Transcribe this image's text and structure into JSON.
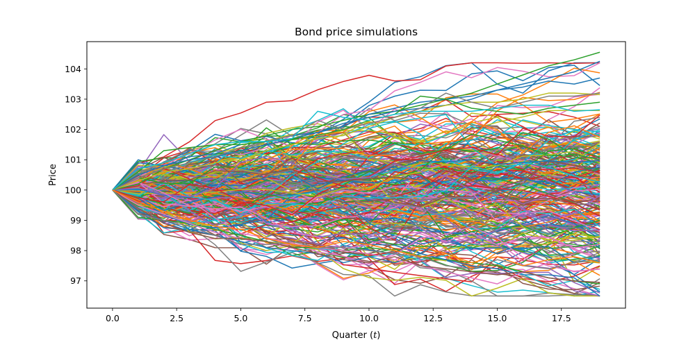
{
  "chart_data": {
    "type": "line",
    "title": "Bond price simulations",
    "xlabel": "Quarter (t)",
    "xlabel_main": "Quarter (",
    "xlabel_var": "t",
    "xlabel_close": ")",
    "ylabel": "Price",
    "xlim": [
      -1,
      20
    ],
    "ylim": [
      96.1,
      104.9
    ],
    "x_ticks": [
      0.0,
      2.5,
      5.0,
      7.5,
      10.0,
      12.5,
      15.0,
      17.5
    ],
    "x_tick_labels": [
      "0.0",
      "2.5",
      "5.0",
      "7.5",
      "10.0",
      "12.5",
      "15.0",
      "17.5"
    ],
    "y_ticks": [
      97,
      98,
      99,
      100,
      101,
      102,
      103,
      104
    ],
    "y_tick_labels": [
      "97",
      "98",
      "99",
      "100",
      "101",
      "102",
      "103",
      "104"
    ],
    "grid": false,
    "legend": "none",
    "x": [
      0,
      1,
      2,
      3,
      4,
      5,
      6,
      7,
      8,
      9,
      10,
      11,
      12,
      13,
      14,
      15,
      16,
      17,
      18,
      19
    ],
    "n_simulations": 300,
    "start_value": 100,
    "colors": [
      "#1f77b4",
      "#ff7f0e",
      "#2ca02c",
      "#d62728",
      "#9467bd",
      "#8c564b",
      "#e377c2",
      "#7f7f7f",
      "#bcbd22",
      "#17becf"
    ],
    "series": [
      {
        "values": [
          100,
          100.2,
          100.7,
          101.0,
          101.3,
          101.6,
          101.8,
          102.0,
          102.1,
          102.3,
          102.5,
          102.6,
          102.8,
          103.0,
          103.2,
          103.5,
          103.8,
          104.1,
          104.3,
          104.55
        ],
        "color": "#2ca02c"
      },
      {
        "values": [
          100,
          100.9,
          100.8,
          101.1,
          101.2,
          101.5,
          101.6,
          101.8,
          101.9,
          102.1,
          102.5,
          102.7,
          102.9,
          103.0,
          103.1,
          103.3,
          103.5,
          103.7,
          103.9,
          104.25
        ],
        "color": "#1f77b4"
      },
      {
        "values": [
          100,
          100.5,
          100.8,
          101.0,
          101.1,
          101.3,
          101.5,
          101.7,
          101.9,
          102.2,
          102.4,
          102.6,
          102.7,
          102.8,
          103.0,
          103.3,
          103.4,
          103.6,
          103.5,
          103.7
        ],
        "color": "#1f77b4"
      },
      {
        "values": [
          100,
          100.3,
          100.6,
          100.7,
          100.9,
          101.0,
          101.3,
          101.5,
          101.7,
          101.8,
          102.1,
          102.4,
          102.6,
          102.8,
          102.9,
          102.9,
          103.0,
          103.2,
          103.2,
          103.15
        ],
        "color": "#bcbd22"
      },
      {
        "values": [
          100,
          100.4,
          100.7,
          100.9,
          101.1,
          101.4,
          101.6,
          101.8,
          102.3,
          102.0,
          102.2,
          102.4,
          102.7,
          103.2,
          102.9,
          102.7,
          102.9,
          103.1,
          103.1,
          103.2
        ],
        "color": "#7f7f7f"
      },
      {
        "values": [
          100,
          100.6,
          101.3,
          101.4,
          101.5,
          101.5,
          101.6,
          101.7,
          101.8,
          102.0,
          102.3,
          102.5,
          103.1,
          103.0,
          102.7,
          102.6,
          102.5,
          102.7,
          102.8,
          102.9
        ],
        "color": "#2ca02c"
      },
      {
        "values": [
          100,
          100.7,
          100.9,
          101.2,
          101.5,
          101.6,
          101.6,
          101.7,
          102.6,
          102.4,
          102.3,
          102.5,
          102.6,
          102.6,
          102.6,
          102.7,
          102.8,
          102.8,
          102.6,
          102.65
        ],
        "color": "#17becf"
      },
      {
        "values": [
          100,
          99.1,
          99.0,
          98.9,
          98.7,
          98.5,
          98.3,
          98.1,
          98.1,
          98.0,
          98.1,
          98.0,
          97.8,
          97.7,
          97.6,
          97.5,
          97.3,
          97.1,
          97.0,
          96.9
        ],
        "color": "#2ca02c"
      },
      {
        "values": [
          100,
          99.3,
          99.0,
          98.7,
          98.5,
          98.3,
          98.1,
          98.0,
          97.9,
          97.6,
          97.8,
          97.6,
          97.9,
          97.7,
          97.5,
          97.4,
          97.2,
          97.2,
          97.1,
          96.5
        ],
        "color": "#1f77b4"
      },
      {
        "values": [
          100,
          99.5,
          99.2,
          98.9,
          98.6,
          98.4,
          98.2,
          98.2,
          98.1,
          98.0,
          97.9,
          97.7,
          97.5,
          97.3,
          97.1,
          96.9,
          97.3,
          97.6,
          97.3,
          97.4
        ],
        "color": "#e377c2"
      },
      {
        "values": [
          100,
          99.4,
          98.9,
          98.6,
          98.4,
          98.4,
          98.3,
          98.1,
          97.9,
          97.7,
          97.6,
          97.8,
          97.5,
          97.4,
          97.3,
          97.2,
          97.3,
          97.1,
          97.0,
          96.95
        ],
        "color": "#8c564b"
      },
      {
        "values": [
          100,
          99.2,
          99.0,
          98.8,
          98.5,
          98.2,
          98.2,
          98.3,
          98.1,
          98.1,
          98.0,
          97.9,
          97.8,
          97.5,
          97.4,
          97.7,
          97.5,
          97.4,
          97.6,
          97.7
        ],
        "color": "#7f7f7f"
      },
      {
        "values": [
          100,
          99.6,
          99.3,
          99.0,
          98.8,
          98.7,
          98.4,
          98.2,
          98.1,
          98.3,
          98.2,
          98.0,
          97.8,
          97.9,
          97.6,
          97.8,
          97.5,
          97.7,
          97.8,
          97.6
        ],
        "color": "#ff7f0e"
      }
    ]
  }
}
